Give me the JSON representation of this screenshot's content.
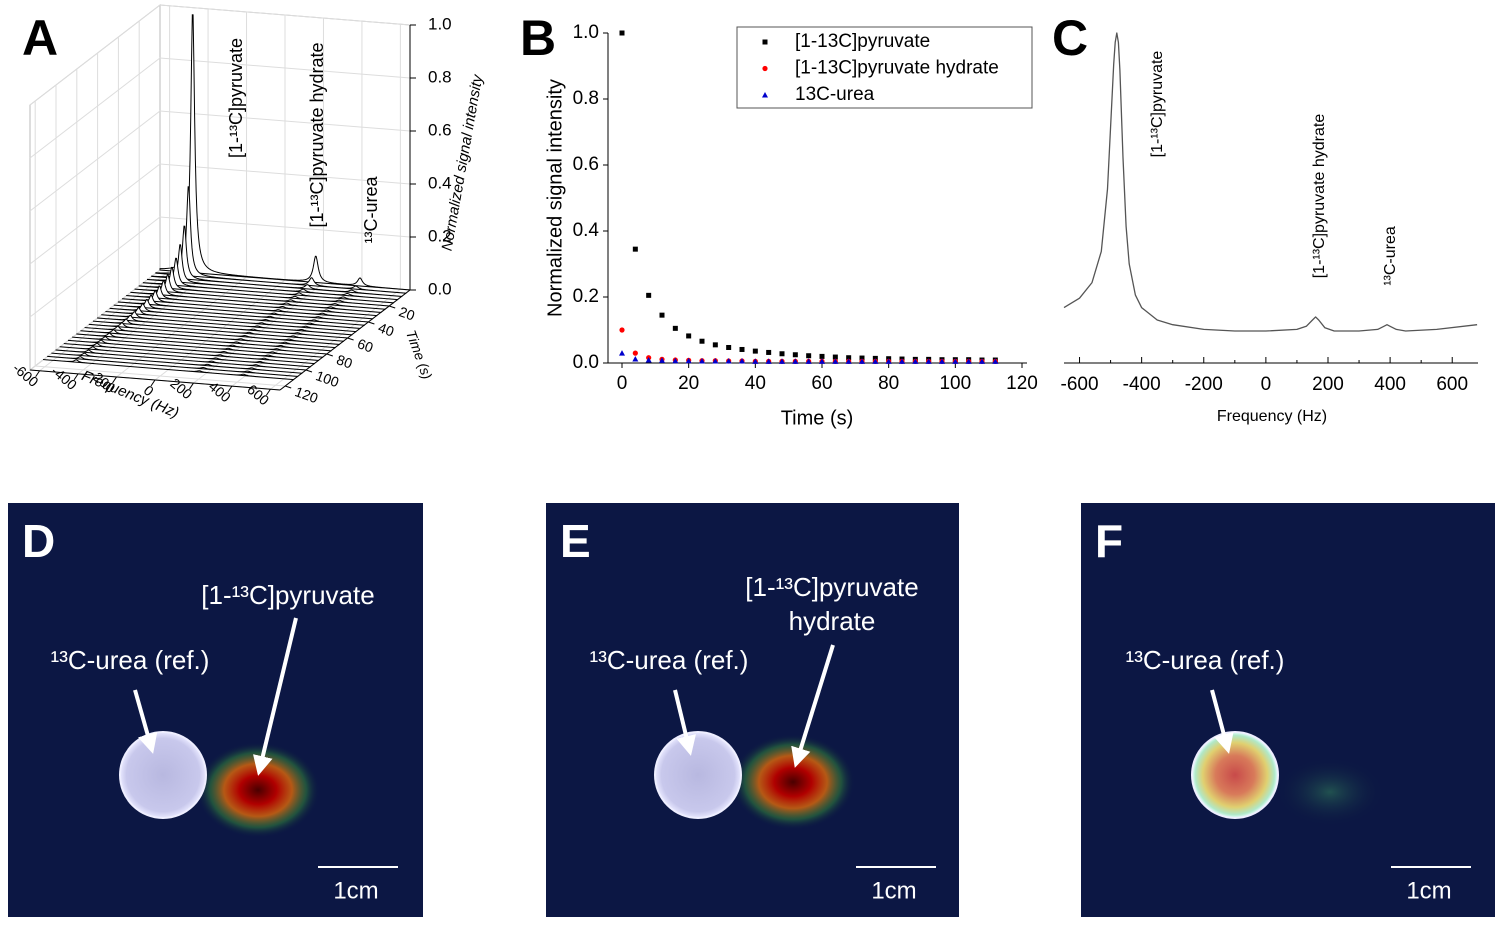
{
  "chart_data": [
    {
      "type": "waterfall",
      "panel": "A",
      "x_label": "Frequency (Hz)",
      "y_label": "Time (s)",
      "z_label": "Normalized signal intensity",
      "times": [
        0,
        4,
        8,
        12,
        16,
        20,
        24,
        28,
        32,
        36,
        40,
        44,
        48,
        52,
        56,
        60,
        64,
        68,
        72,
        76,
        80,
        84,
        88,
        92,
        96,
        100,
        104,
        108,
        112
      ],
      "series": [
        {
          "name": "[1-¹³C]pyruvate",
          "frequency": -480,
          "values": [
            1.0,
            0.345,
            0.205,
            0.145,
            0.105,
            0.082,
            0.066,
            0.055,
            0.047,
            0.041,
            0.036,
            0.032,
            0.028,
            0.025,
            0.022,
            0.02,
            0.018,
            0.016,
            0.015,
            0.014,
            0.013,
            0.012,
            0.011,
            0.011,
            0.01,
            0.01,
            0.01,
            0.009,
            0.009
          ]
        },
        {
          "name": "[1-¹³C]pyruvate hydrate",
          "frequency": 160,
          "values": [
            0.1,
            0.03,
            0.016,
            0.011,
            0.009,
            0.008,
            0.007,
            0.007,
            0.006,
            0.006,
            0.005,
            0.005,
            0.005,
            0.005,
            0.005,
            0.005,
            0.005,
            0.005,
            0.005,
            0.005,
            0.005,
            0.005,
            0.005,
            0.005,
            0.005,
            0.005,
            0.005,
            0.005,
            0.005
          ]
        },
        {
          "name": "¹³C-urea",
          "frequency": 390,
          "values": [
            0.03,
            0.012,
            0.009,
            0.008,
            0.007,
            0.007,
            0.006,
            0.006,
            0.006,
            0.006,
            0.005,
            0.005,
            0.005,
            0.005,
            0.005,
            0.005,
            0.005,
            0.005,
            0.005,
            0.005,
            0.005,
            0.005,
            0.005,
            0.005,
            0.005,
            0.005,
            0.005,
            0.005,
            0.005
          ]
        }
      ],
      "xlim": [
        -650,
        650
      ],
      "xticks": [
        -600,
        -400,
        -200,
        0,
        200,
        400,
        600
      ],
      "ylim": [
        0,
        125
      ],
      "yticks": [
        20,
        40,
        60,
        80,
        100,
        120
      ],
      "zlim": [
        0,
        1
      ],
      "zticks": [
        {
          "value": 0,
          "label": "0.0"
        },
        0.2,
        0.4,
        0.6,
        0.8,
        {
          "value": 1,
          "label": "1.0"
        }
      ],
      "grid": true
    },
    {
      "type": "scatter",
      "panel": "B",
      "x_label": "Time (s)",
      "y_label": "Normalized signal intensity",
      "x": [
        0,
        4,
        8,
        12,
        16,
        20,
        24,
        28,
        32,
        36,
        40,
        44,
        48,
        52,
        56,
        60,
        64,
        68,
        72,
        76,
        80,
        84,
        88,
        92,
        96,
        100,
        104,
        108,
        112
      ],
      "series": [
        {
          "name": "[1-13C]pyruvate",
          "color": "#000000",
          "marker": "square",
          "values": [
            1.0,
            0.345,
            0.205,
            0.145,
            0.105,
            0.082,
            0.066,
            0.055,
            0.047,
            0.041,
            0.036,
            0.032,
            0.028,
            0.025,
            0.022,
            0.02,
            0.018,
            0.016,
            0.015,
            0.014,
            0.013,
            0.012,
            0.011,
            0.011,
            0.01,
            0.01,
            0.01,
            0.009,
            0.009
          ]
        },
        {
          "name": "[1-13C]pyruvate hydrate",
          "color": "#ff0000",
          "marker": "circle",
          "values": [
            0.1,
            0.03,
            0.016,
            0.011,
            0.009,
            0.008,
            0.007,
            0.007,
            0.006,
            0.006,
            0.005,
            0.005,
            0.005,
            0.005,
            0.005,
            0.005,
            0.005,
            0.005,
            0.005,
            0.005,
            0.005,
            0.005,
            0.005,
            0.005,
            0.005,
            0.005,
            0.005,
            0.005,
            0.005
          ]
        },
        {
          "name": "13C-urea",
          "color": "#0000cc",
          "marker": "triangle",
          "values": [
            0.03,
            0.012,
            0.009,
            0.008,
            0.007,
            0.007,
            0.006,
            0.006,
            0.006,
            0.006,
            0.005,
            0.005,
            0.005,
            0.005,
            0.005,
            0.005,
            0.005,
            0.005,
            0.005,
            0.005,
            0.005,
            0.005,
            0.005,
            0.005,
            0.005,
            0.005,
            0.005,
            0.005,
            0.005
          ]
        }
      ],
      "xlim": [
        -4.2,
        121.5
      ],
      "xticks": [
        0,
        20,
        40,
        60,
        80,
        100,
        120
      ],
      "ylim": [
        0,
        1
      ],
      "yticks": [
        {
          "value": 0,
          "label": "0.0"
        },
        0.2,
        0.4,
        0.6,
        0.8,
        {
          "value": 1,
          "label": "1.0"
        }
      ],
      "legend": "top-right"
    },
    {
      "type": "line",
      "panel": "C",
      "x_label": "Frequency (Hz)",
      "annotations": [
        "[1-¹³C]pyruvate",
        "[1-¹³C]pyruvate hydrate",
        "¹³C-urea"
      ],
      "x": [
        -650,
        -600,
        -560,
        -530,
        -510,
        -500,
        -490,
        -485,
        -480,
        -475,
        -470,
        -460,
        -450,
        -440,
        -420,
        -400,
        -350,
        -300,
        -200,
        -100,
        0,
        100,
        130,
        150,
        160,
        170,
        190,
        220,
        300,
        360,
        380,
        390,
        400,
        420,
        450,
        550,
        680
      ],
      "values": [
        0.12,
        0.15,
        0.2,
        0.3,
        0.5,
        0.7,
        0.9,
        0.97,
        1.0,
        0.97,
        0.88,
        0.6,
        0.38,
        0.26,
        0.16,
        0.12,
        0.08,
        0.065,
        0.05,
        0.045,
        0.045,
        0.05,
        0.06,
        0.08,
        0.09,
        0.08,
        0.055,
        0.045,
        0.045,
        0.05,
        0.06,
        0.065,
        0.06,
        0.05,
        0.045,
        0.05,
        0.065
      ],
      "color": "#555555",
      "xlim": [
        -650,
        683
      ],
      "xticks": [
        -600,
        -400,
        -200,
        0,
        200,
        400,
        600
      ],
      "ylim": [
        0,
        1
      ]
    }
  ],
  "images": [
    {
      "label": "D",
      "annotations": [
        {
          "lines": [
            "¹³C-urea (ref.)"
          ]
        },
        {
          "lines": [
            "[1-¹³C]pyruvate"
          ]
        }
      ],
      "scale_bar": "1cm"
    },
    {
      "label": "E",
      "annotations": [
        {
          "lines": [
            "¹³C-urea (ref.)"
          ]
        },
        {
          "lines": [
            "[1-¹³C]pyruvate",
            "hydrate"
          ]
        }
      ],
      "scale_bar": "1cm"
    },
    {
      "label": "F",
      "annotations": [
        {
          "lines": [
            "¹³C-urea (ref.)"
          ]
        }
      ],
      "scale_bar": "1cm"
    }
  ]
}
